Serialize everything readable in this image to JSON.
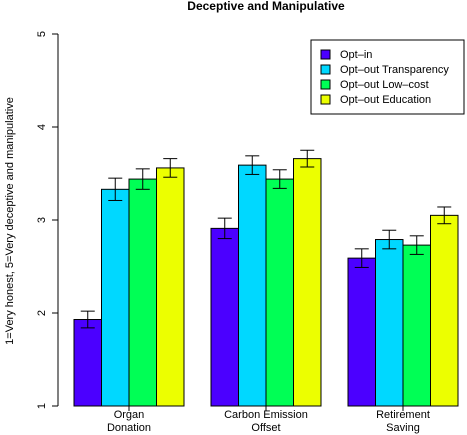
{
  "chart_data": {
    "type": "bar",
    "title": "Deceptive and Manipulative",
    "ylabel": "1=Very honest, 5=Very deceptive and manipulative",
    "xlabel": "",
    "ylim": [
      1,
      5
    ],
    "yticks": [
      "1",
      "2",
      "3",
      "4",
      "5"
    ],
    "categories": [
      [
        "Organ",
        "Donation"
      ],
      [
        "Carbon Emission",
        "Offset"
      ],
      [
        "Retirement",
        "Saving"
      ]
    ],
    "legend_position": "top-right",
    "series": [
      {
        "name": "Opt–in",
        "color": "#4b00ff",
        "values": [
          1.93,
          2.91,
          2.59
        ],
        "errors": [
          0.09,
          0.11,
          0.1
        ]
      },
      {
        "name": "Opt–out Transparency",
        "color": "#00d8ff",
        "values": [
          3.33,
          3.59,
          2.79
        ],
        "errors": [
          0.12,
          0.1,
          0.1
        ]
      },
      {
        "name": "Opt–out Low–cost",
        "color": "#00ff55",
        "values": [
          3.44,
          3.44,
          2.73
        ],
        "errors": [
          0.11,
          0.1,
          0.1
        ]
      },
      {
        "name": "Opt–out Education",
        "color": "#ecff00",
        "values": [
          3.56,
          3.66,
          3.05
        ],
        "errors": [
          0.1,
          0.09,
          0.09
        ]
      }
    ]
  }
}
